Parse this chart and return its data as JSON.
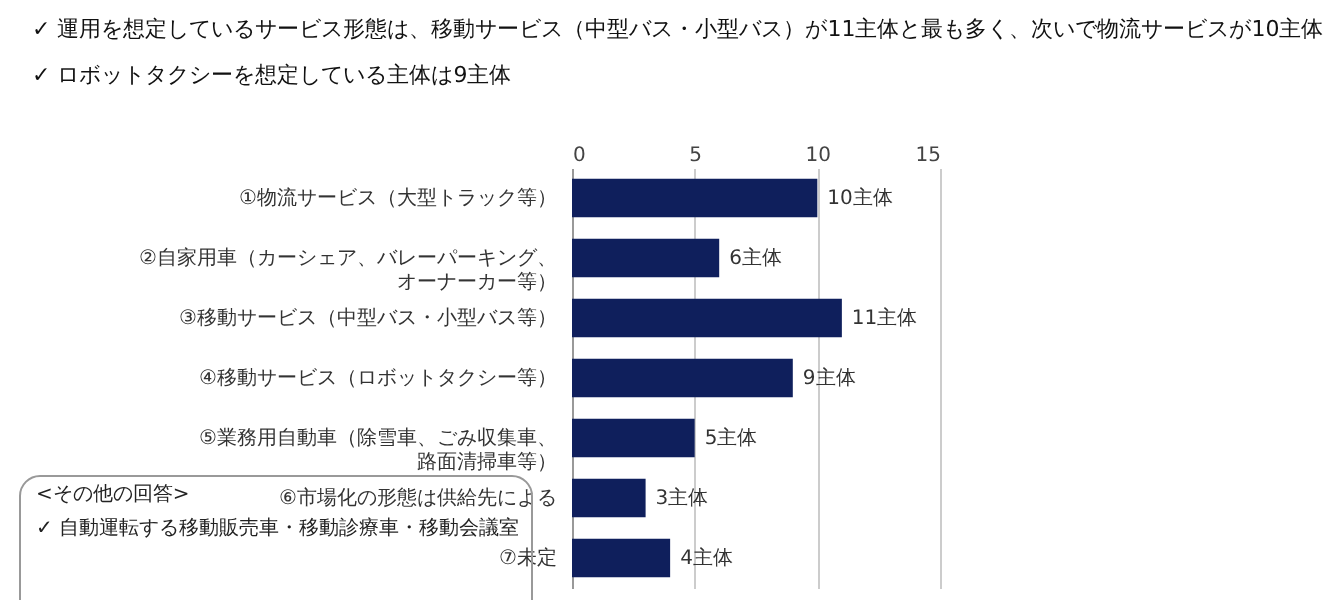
{
  "chart_data": {
    "type": "bar",
    "orientation": "horizontal",
    "title": "✓ 運用を想定しているサービス形態は、移動サービス（中型バス・小型バス）が11主体と最も多く、次いで物流サービスが10主体",
    "subtitle": "✓ ロボットタクシーを想定している主体は9主体",
    "categories": [
      "①物流サービス（大型トラック等）",
      "②自家用車（カーシェア、バレーパーキング、オーナーカー等）",
      "③移動サービス（中型バス・小型バス等）",
      "④移動サービス（ロボットタクシー等）",
      "⑤業務用自動車（除雪車、ごみ収集車、路面清掃車等）",
      "⑥市場化の形態は供給先による",
      "⑦未定"
    ],
    "values": [
      10,
      6,
      11,
      9,
      5,
      3,
      4
    ],
    "value_labels": [
      "10主体",
      "6主体",
      "11主体",
      "9主体",
      "5主体",
      "3主体",
      "4主体"
    ],
    "color": "#0f1f5c",
    "xlim": [
      0,
      15
    ],
    "xticks": [
      0,
      5,
      10,
      15
    ],
    "grid": "x",
    "annotations": [
      "<その他の回答>",
      "✓ 自動運転する移動販売車・移動診療車・移動会議室"
    ]
  }
}
